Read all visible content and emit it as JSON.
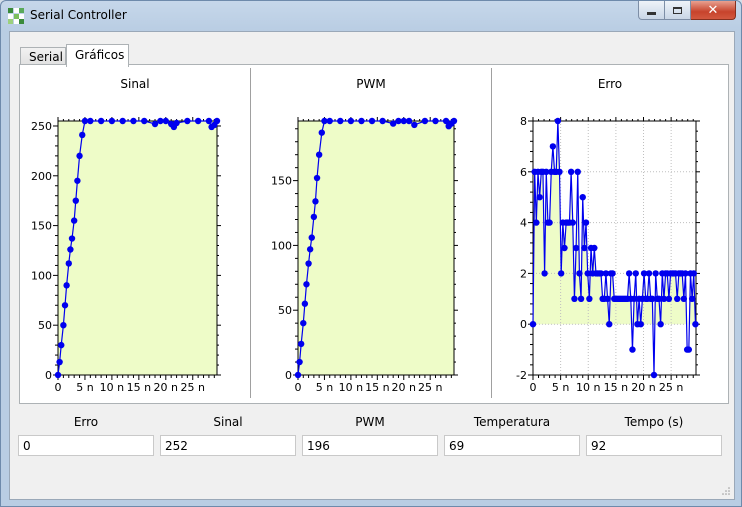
{
  "window": {
    "title": "Serial Controller"
  },
  "tabs": [
    {
      "label": "Serial",
      "active": false
    },
    {
      "label": "Gráficos",
      "active": true
    }
  ],
  "colors": {
    "series": "#0000ee",
    "plot_bg": "#eefcc8",
    "frame_border": "#6e8aab"
  },
  "charts": {
    "sinal": {
      "title": "Sinal"
    },
    "pwm": {
      "title": "PWM"
    },
    "erro": {
      "title": "Erro"
    }
  },
  "chart_data": [
    {
      "type": "line",
      "title": "Sinal",
      "xlabel": "",
      "ylabel": "",
      "xlim": [
        0,
        29.5
      ],
      "ylim": [
        0,
        255
      ],
      "xticks": [
        0,
        5,
        10,
        15,
        20,
        25
      ],
      "xtick_labels": [
        "0",
        "5 n",
        "10 n",
        "15 n",
        "20 n",
        "25 n"
      ],
      "yticks": [
        0,
        50,
        100,
        150,
        200,
        250
      ],
      "grid": false,
      "series": [
        {
          "x": [
            0,
            0.3,
            0.6,
            1,
            1.3,
            1.6,
            2,
            2.3,
            2.6,
            3,
            3.3,
            3.6,
            4,
            4.5,
            5,
            6,
            8,
            10,
            12,
            14,
            16,
            18,
            19,
            20,
            21,
            21.5,
            22,
            24,
            26,
            28,
            28.5,
            29,
            29.5
          ],
          "y": [
            0,
            13,
            30,
            50,
            70,
            90,
            112,
            126,
            137,
            155,
            175,
            195,
            220,
            241,
            255,
            255,
            255,
            255,
            255,
            255,
            255,
            252,
            255,
            255,
            252,
            249,
            253,
            255,
            255,
            255,
            249,
            251,
            255
          ]
        }
      ]
    },
    {
      "type": "line",
      "title": "PWM",
      "xlabel": "",
      "ylabel": "",
      "xlim": [
        0,
        29.5
      ],
      "ylim": [
        0,
        196
      ],
      "xticks": [
        0,
        5,
        10,
        15,
        20,
        25
      ],
      "xtick_labels": [
        "0",
        "5 n",
        "10 n",
        "15 n",
        "20 n",
        "25 n"
      ],
      "yticks": [
        0,
        50,
        100,
        150
      ],
      "grid": false,
      "series": [
        {
          "x": [
            0,
            0.3,
            0.6,
            1,
            1.3,
            1.6,
            2,
            2.3,
            2.6,
            3,
            3.3,
            3.6,
            4,
            4.5,
            5,
            6,
            8,
            10,
            12,
            14,
            16,
            18,
            19,
            20,
            21,
            22,
            24,
            26,
            28,
            28.5,
            29,
            29.5
          ],
          "y": [
            0,
            10,
            24,
            40,
            55,
            70,
            86,
            97,
            106,
            122,
            134,
            152,
            170,
            187,
            196,
            196,
            196,
            196,
            196,
            196,
            196,
            194,
            196,
            196,
            196,
            193,
            196,
            196,
            196,
            192,
            194,
            196
          ]
        }
      ]
    },
    {
      "type": "line",
      "title": "Erro",
      "xlabel": "",
      "ylabel": "",
      "xlim": [
        0,
        29.5
      ],
      "ylim": [
        -2,
        8
      ],
      "xticks": [
        0,
        5,
        10,
        15,
        20,
        25
      ],
      "xtick_labels": [
        "0",
        "5 n",
        "10 n",
        "15 n",
        "20 n",
        "25 n"
      ],
      "yticks": [
        -2,
        0,
        2,
        4,
        6,
        8
      ],
      "grid": true,
      "series": [
        {
          "x": [
            0,
            0.3,
            0.6,
            0.9,
            1.2,
            1.5,
            1.8,
            2.1,
            2.4,
            2.7,
            3,
            3.3,
            3.6,
            3.9,
            4.2,
            4.5,
            4.8,
            5.1,
            5.4,
            5.7,
            6,
            6.3,
            6.6,
            6.9,
            7.2,
            7.5,
            7.8,
            8.1,
            8.4,
            8.7,
            9,
            9.3,
            9.6,
            9.9,
            10.2,
            10.5,
            10.8,
            11.1,
            11.4,
            11.7,
            12,
            12.3,
            12.6,
            12.9,
            13.2,
            13.5,
            13.8,
            14.1,
            14.4,
            14.7,
            15,
            15.3,
            15.6,
            15.9,
            16.2,
            16.5,
            16.8,
            17.1,
            17.4,
            17.7,
            18,
            18.3,
            18.6,
            18.9,
            19.2,
            19.5,
            19.8,
            20.1,
            20.4,
            20.7,
            21,
            21.3,
            21.6,
            21.9,
            22.2,
            22.5,
            22.8,
            23.1,
            23.4,
            23.7,
            24,
            24.3,
            24.6,
            24.9,
            25.2,
            25.5,
            25.8,
            26.1,
            26.4,
            26.7,
            27,
            27.3,
            27.6,
            27.9,
            28.2,
            28.5,
            28.8,
            29.1,
            29.4
          ],
          "y": [
            0,
            6,
            4,
            6,
            5,
            6,
            6,
            2,
            6,
            4,
            4,
            6,
            7,
            6,
            6,
            8,
            6,
            2,
            4,
            3,
            4,
            4,
            4,
            6,
            4,
            1,
            3,
            6,
            2,
            1,
            5,
            3,
            4,
            2,
            1,
            3,
            2,
            3,
            2,
            2,
            2,
            2,
            1,
            1,
            2,
            1,
            0,
            2,
            2,
            1,
            1,
            1,
            1,
            1,
            1,
            1,
            1,
            1,
            2,
            1,
            -1,
            1,
            2,
            0,
            1,
            0,
            1,
            2,
            1,
            1,
            2,
            1,
            1,
            -2,
            2,
            1,
            1,
            0,
            2,
            1,
            2,
            2,
            1,
            2,
            2,
            2,
            2,
            1,
            2,
            2,
            2,
            1,
            2,
            -1,
            -1,
            2,
            1,
            2,
            0
          ]
        }
      ]
    }
  ],
  "fields": [
    {
      "label": "Erro",
      "value": "0"
    },
    {
      "label": "Sinal",
      "value": "252"
    },
    {
      "label": "PWM",
      "value": "196"
    },
    {
      "label": "Temperatura",
      "value": "69"
    },
    {
      "label": "Tempo (s)",
      "value": "92"
    }
  ]
}
